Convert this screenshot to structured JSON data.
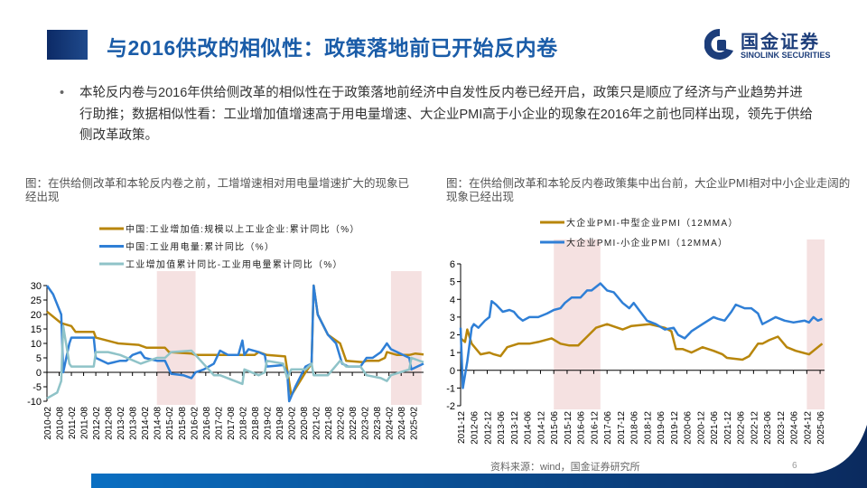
{
  "header": {
    "title": "与2016供改的相似性：政策落地前已开始反内卷",
    "logo_cn": "国金证券",
    "logo_en": "SINOLINK SECURITIES"
  },
  "bullet": {
    "text": "本轮反内卷与2016年供给侧改革的相似性在于政策落地前经济中自发性反内卷已经开启，政策只是顺应了经济与产业趋势并进行助推；数据相似性看：工业增加值增速高于用电量增速、大企业PMI高于小企业的现象在2016年之前也同样出现，领先于供给侧改革政策。"
  },
  "footer": {
    "source": "资料来源：wind，国金证券研究所",
    "page_number": "6"
  },
  "colors": {
    "accent": "#1a5ca8",
    "gold": "#b8860b",
    "blue": "#2f7fd6",
    "teal": "#8fc3c8",
    "shade": "#f5e1e1"
  },
  "chart_data": [
    {
      "type": "line",
      "title": "图：在供给侧改革和本轮反内卷之前，工增增速相对用电量增速扩大的现象已经出现",
      "ylim": [
        -10,
        30
      ],
      "yticks": [
        "30",
        "25",
        "20",
        "15",
        "10",
        "5",
        "0",
        "-5",
        "-10"
      ],
      "xlim": [
        "2010-02",
        "2025-07"
      ],
      "xticks": [
        "2010-02",
        "2010-08",
        "2011-02",
        "2011-08",
        "2012-02",
        "2012-08",
        "2013-02",
        "2013-08",
        "2014-02",
        "2014-08",
        "2015-02",
        "2015-08",
        "2016-02",
        "2016-08",
        "2017-02",
        "2017-08",
        "2018-02",
        "2018-08",
        "2019-02",
        "2019-08",
        "2020-02",
        "2020-08",
        "2021-02",
        "2021-08",
        "2022-02",
        "2022-08",
        "2023-02",
        "2023-08",
        "2024-02",
        "2024-08",
        "2025-02"
      ],
      "shaded_periods": [
        [
          "2014-08",
          "2016-03"
        ],
        [
          "2024-03",
          "2025-06"
        ]
      ],
      "legend_position": "top",
      "series": [
        {
          "name": "中国:工业增加值:规模以上工业企业:累计同比（%）",
          "color": "#b8860b",
          "points": [
            [
              "2010-02",
              21
            ],
            [
              "2010-09",
              17
            ],
            [
              "2011-02",
              16
            ],
            [
              "2011-03",
              15
            ],
            [
              "2011-04",
              14
            ],
            [
              "2012-01",
              14
            ],
            [
              "2012-02",
              12
            ],
            [
              "2013-01",
              10
            ],
            [
              "2013-11",
              9.5
            ],
            [
              "2014-03",
              8.5
            ],
            [
              "2014-12",
              8.5
            ],
            [
              "2015-02",
              7
            ],
            [
              "2016-01",
              6.5
            ],
            [
              "2016-03",
              6
            ],
            [
              "2018-08",
              6
            ],
            [
              "2018-10",
              7
            ],
            [
              "2019-02",
              6
            ],
            [
              "2019-11",
              5.5
            ],
            [
              "2020-02",
              -8
            ],
            [
              "2020-09",
              0
            ],
            [
              "2020-12",
              3
            ],
            [
              "2021-01",
              30
            ],
            [
              "2021-03",
              20
            ],
            [
              "2021-08",
              13
            ],
            [
              "2022-02",
              10
            ],
            [
              "2022-05",
              4
            ],
            [
              "2023-01",
              3.5
            ],
            [
              "2023-03",
              4
            ],
            [
              "2023-09",
              4
            ],
            [
              "2023-12",
              5
            ],
            [
              "2024-01",
              7
            ],
            [
              "2024-06",
              6
            ],
            [
              "2024-12",
              6
            ],
            [
              "2025-03",
              6.5
            ],
            [
              "2025-07",
              6.2
            ]
          ]
        },
        {
          "name": "中国:工业用电量:累计同比（%）",
          "color": "#2f7fd6",
          "points": [
            [
              "2010-02",
              30
            ],
            [
              "2010-05",
              27
            ],
            [
              "2010-09",
              20
            ],
            [
              "2010-10",
              0
            ],
            [
              "2011-01",
              10
            ],
            [
              "2011-02",
              12
            ],
            [
              "2012-01",
              12
            ],
            [
              "2012-02",
              5
            ],
            [
              "2012-08",
              3
            ],
            [
              "2013-02",
              4
            ],
            [
              "2013-05",
              4
            ],
            [
              "2013-08",
              6
            ],
            [
              "2013-12",
              7
            ],
            [
              "2014-02",
              5
            ],
            [
              "2014-08",
              4
            ],
            [
              "2014-12",
              4
            ],
            [
              "2015-03",
              -0.5
            ],
            [
              "2015-09",
              -1
            ],
            [
              "2016-01",
              -2
            ],
            [
              "2016-03",
              0
            ],
            [
              "2016-07",
              1
            ],
            [
              "2016-12",
              3
            ],
            [
              "2017-03",
              7.5
            ],
            [
              "2017-07",
              6
            ],
            [
              "2017-12",
              6
            ],
            [
              "2018-02",
              11
            ],
            [
              "2018-03",
              6
            ],
            [
              "2018-05",
              8
            ],
            [
              "2018-10",
              7
            ],
            [
              "2019-01",
              6
            ],
            [
              "2019-02",
              2
            ],
            [
              "2019-10",
              2.5
            ],
            [
              "2019-12",
              0
            ],
            [
              "2020-01",
              -10
            ],
            [
              "2020-04",
              -5
            ],
            [
              "2020-09",
              2
            ],
            [
              "2020-12",
              3
            ],
            [
              "2021-01",
              30
            ],
            [
              "2021-03",
              20
            ],
            [
              "2021-08",
              13
            ],
            [
              "2021-12",
              10
            ],
            [
              "2022-03",
              3
            ],
            [
              "2022-06",
              2
            ],
            [
              "2022-12",
              2
            ],
            [
              "2023-03",
              5
            ],
            [
              "2023-06",
              5
            ],
            [
              "2023-10",
              7
            ],
            [
              "2024-01",
              10
            ],
            [
              "2024-03",
              8
            ],
            [
              "2024-12",
              5
            ],
            [
              "2025-01",
              1
            ],
            [
              "2025-07",
              3
            ]
          ]
        },
        {
          "name": "工业增加值累计同比-工业用电量累计同比（%）",
          "color": "#8fc3c8",
          "points": [
            [
              "2010-02",
              -9
            ],
            [
              "2010-07",
              -7
            ],
            [
              "2010-09",
              -3
            ],
            [
              "2010-10",
              16
            ],
            [
              "2011-01",
              3
            ],
            [
              "2011-02",
              2
            ],
            [
              "2012-01",
              2
            ],
            [
              "2012-02",
              7
            ],
            [
              "2012-08",
              7
            ],
            [
              "2013-02",
              6
            ],
            [
              "2013-12",
              3
            ],
            [
              "2014-08",
              5
            ],
            [
              "2014-12",
              5
            ],
            [
              "2015-03",
              7
            ],
            [
              "2016-01",
              7.5
            ],
            [
              "2016-03",
              6
            ],
            [
              "2016-12",
              -1
            ],
            [
              "2017-03",
              -1
            ],
            [
              "2018-02",
              -4
            ],
            [
              "2018-03",
              1
            ],
            [
              "2018-10",
              -1
            ],
            [
              "2019-01",
              0
            ],
            [
              "2019-02",
              4
            ],
            [
              "2019-10",
              3
            ],
            [
              "2019-12",
              -2
            ],
            [
              "2020-02",
              1
            ],
            [
              "2020-09",
              1
            ],
            [
              "2020-12",
              3
            ],
            [
              "2021-01",
              -1
            ],
            [
              "2021-08",
              -1
            ],
            [
              "2022-02",
              4
            ],
            [
              "2022-05",
              2
            ],
            [
              "2022-12",
              2
            ],
            [
              "2023-03",
              -1
            ],
            [
              "2023-10",
              -2
            ],
            [
              "2024-01",
              -3
            ],
            [
              "2024-03",
              -1
            ],
            [
              "2024-12",
              1
            ],
            [
              "2025-01",
              5
            ],
            [
              "2025-07",
              3.5
            ]
          ]
        }
      ]
    },
    {
      "type": "line",
      "title": "图：在供给侧改革和本轮反内卷政策集中出台前，大企业PMI相对中小企业走阔的现象已经出现",
      "ylim": [
        -2,
        6
      ],
      "yticks": [
        "6",
        "5",
        "4",
        "3",
        "2",
        "1",
        "0",
        "-1",
        "-2"
      ],
      "xlim": [
        "2011-12",
        "2025-08"
      ],
      "xticks": [
        "2011-12",
        "2012-06",
        "2012-12",
        "2013-06",
        "2013-12",
        "2014-06",
        "2014-12",
        "2015-06",
        "2015-12",
        "2016-06",
        "2016-12",
        "2017-06",
        "2017-12",
        "2018-06",
        "2018-12",
        "2019-06",
        "2019-12",
        "2020-06",
        "2020-12",
        "2021-06",
        "2021-12",
        "2022-06",
        "2022-12",
        "2023-06",
        "2023-12",
        "2024-06",
        "2024-12",
        "2025-06"
      ],
      "shaded_periods": [
        [
          "2015-06",
          "2017-03"
        ],
        [
          "2024-12",
          "2025-08"
        ]
      ],
      "legend_position": "top",
      "series": [
        {
          "name": "大企业PMI-中型企业PMI（12MMA）",
          "color": "#b8860b",
          "points": [
            [
              "2011-12",
              1.8
            ],
            [
              "2012-02",
              1.6
            ],
            [
              "2012-03",
              2.3
            ],
            [
              "2012-05",
              1.5
            ],
            [
              "2012-09",
              0.9
            ],
            [
              "2013-01",
              1.0
            ],
            [
              "2013-03",
              0.9
            ],
            [
              "2013-06",
              0.8
            ],
            [
              "2013-09",
              1.3
            ],
            [
              "2014-02",
              1.5
            ],
            [
              "2014-07",
              1.5
            ],
            [
              "2014-11",
              1.6
            ],
            [
              "2015-05",
              1.8
            ],
            [
              "2015-09",
              1.5
            ],
            [
              "2016-01",
              1.4
            ],
            [
              "2016-05",
              1.4
            ],
            [
              "2016-09",
              1.9
            ],
            [
              "2017-01",
              2.4
            ],
            [
              "2017-06",
              2.6
            ],
            [
              "2018-01",
              2.3
            ],
            [
              "2018-05",
              2.5
            ],
            [
              "2019-01",
              2.6
            ],
            [
              "2019-08",
              2.4
            ],
            [
              "2019-11",
              2.2
            ],
            [
              "2020-01",
              1.2
            ],
            [
              "2020-04",
              1.2
            ],
            [
              "2020-08",
              1.0
            ],
            [
              "2021-01",
              1.3
            ],
            [
              "2021-06",
              1.1
            ],
            [
              "2021-10",
              0.9
            ],
            [
              "2021-12",
              0.7
            ],
            [
              "2022-07",
              0.6
            ],
            [
              "2022-10",
              0.8
            ],
            [
              "2023-02",
              1.5
            ],
            [
              "2023-04",
              1.5
            ],
            [
              "2023-07",
              1.7
            ],
            [
              "2023-11",
              1.9
            ],
            [
              "2024-03",
              1.3
            ],
            [
              "2024-07",
              1.1
            ],
            [
              "2025-01",
              0.9
            ],
            [
              "2025-05",
              1.3
            ],
            [
              "2025-07",
              1.5
            ]
          ]
        },
        {
          "name": "大企业PMI-小企业PMI（12MMA）",
          "color": "#2f7fd6",
          "points": [
            [
              "2011-12",
              2.4
            ],
            [
              "2012-01",
              -1
            ],
            [
              "2012-03",
              0.5
            ],
            [
              "2012-05",
              2.4
            ],
            [
              "2012-06",
              2.6
            ],
            [
              "2012-08",
              2.4
            ],
            [
              "2012-11",
              2.8
            ],
            [
              "2013-01",
              3.0
            ],
            [
              "2013-02",
              3.9
            ],
            [
              "2013-04",
              3.7
            ],
            [
              "2013-07",
              3.3
            ],
            [
              "2013-10",
              3.4
            ],
            [
              "2013-12",
              3.3
            ],
            [
              "2014-02",
              3.0
            ],
            [
              "2014-04",
              2.8
            ],
            [
              "2014-07",
              3.0
            ],
            [
              "2014-11",
              3.0
            ],
            [
              "2015-03",
              3.2
            ],
            [
              "2015-06",
              3.4
            ],
            [
              "2015-09",
              3.5
            ],
            [
              "2015-11",
              3.8
            ],
            [
              "2016-02",
              4.1
            ],
            [
              "2016-06",
              4.1
            ],
            [
              "2016-09",
              4.5
            ],
            [
              "2016-11",
              4.5
            ],
            [
              "2017-03",
              4.9
            ],
            [
              "2017-06",
              4.5
            ],
            [
              "2017-09",
              4.4
            ],
            [
              "2018-01",
              3.8
            ],
            [
              "2018-04",
              3.5
            ],
            [
              "2018-06",
              3.8
            ],
            [
              "2018-09",
              3.3
            ],
            [
              "2018-12",
              2.8
            ],
            [
              "2019-04",
              2.6
            ],
            [
              "2019-08",
              2.3
            ],
            [
              "2019-12",
              2.4
            ],
            [
              "2020-02",
              2.0
            ],
            [
              "2020-05",
              1.8
            ],
            [
              "2020-08",
              2.2
            ],
            [
              "2021-01",
              2.6
            ],
            [
              "2021-06",
              3.0
            ],
            [
              "2021-08",
              2.9
            ],
            [
              "2021-11",
              2.8
            ],
            [
              "2022-02",
              3.3
            ],
            [
              "2022-04",
              3.7
            ],
            [
              "2022-08",
              3.5
            ],
            [
              "2022-11",
              3.5
            ],
            [
              "2023-02",
              3.2
            ],
            [
              "2023-04",
              2.6
            ],
            [
              "2023-07",
              2.8
            ],
            [
              "2023-10",
              3.0
            ],
            [
              "2024-02",
              2.8
            ],
            [
              "2024-06",
              2.7
            ],
            [
              "2024-11",
              2.8
            ],
            [
              "2025-01",
              2.7
            ],
            [
              "2025-03",
              3.0
            ],
            [
              "2025-05",
              2.8
            ],
            [
              "2025-07",
              2.9
            ]
          ]
        }
      ]
    }
  ]
}
